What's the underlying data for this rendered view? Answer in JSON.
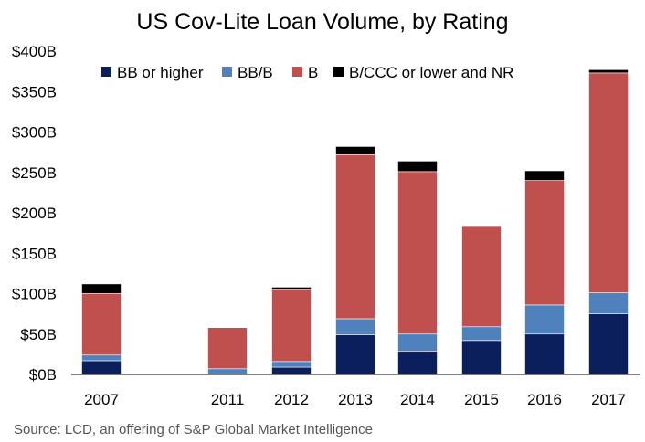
{
  "chart_data": {
    "type": "bar",
    "stacked": true,
    "title": "US Cov-Lite Loan Volume, by Rating",
    "source": "Source: LCD, an offering of S&P Global Market Intelligence",
    "categories": [
      "2007",
      "2011",
      "2012",
      "2013",
      "2014",
      "2015",
      "2016",
      "2017"
    ],
    "category_gap_after": "2007",
    "ylim": [
      0,
      400
    ],
    "y_ticks": [
      0,
      50,
      100,
      150,
      200,
      250,
      300,
      350,
      400
    ],
    "y_tick_labels": [
      "$0B",
      "$50B",
      "$100B",
      "$150B",
      "$200B",
      "$250B",
      "$300B",
      "$350B",
      "$400B"
    ],
    "xlabel": "",
    "ylabel": "",
    "grid": false,
    "legend_position": "top",
    "series": [
      {
        "name": "BB or higher",
        "color": "#0a1f5c",
        "values": [
          17,
          0,
          9,
          49,
          29,
          42,
          50,
          75
        ]
      },
      {
        "name": "BB/B",
        "color": "#4f81bd",
        "values": [
          7,
          7,
          7,
          20,
          21,
          17,
          36,
          26
        ]
      },
      {
        "name": "B",
        "color": "#c0504d",
        "values": [
          76,
          51,
          89,
          203,
          201,
          124,
          154,
          272
        ]
      },
      {
        "name": "B/CCC or lower and NR",
        "color": "#000000",
        "values": [
          12,
          0,
          3,
          10,
          13,
          0,
          12,
          4
        ]
      }
    ]
  }
}
